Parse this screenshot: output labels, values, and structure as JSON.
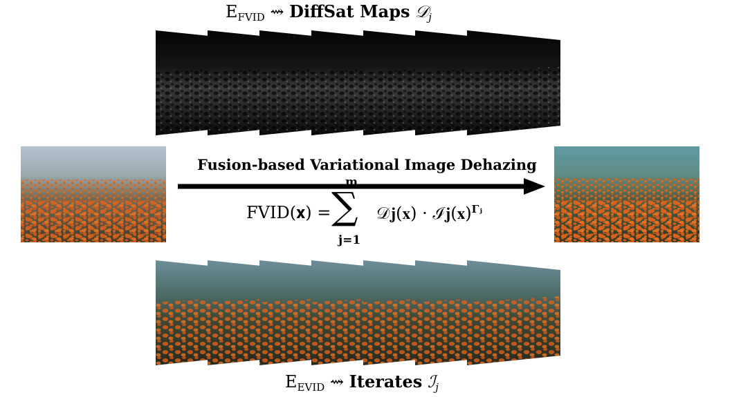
{
  "top_label": {
    "prefix": "E",
    "subscript": "FVID",
    "arrow": "⇝",
    "bold": "DiffSat Maps",
    "symbol": "𝒟",
    "symbol_sub": "j"
  },
  "bottom_label": {
    "prefix": "E",
    "subscript": "EVID",
    "arrow": "⇝",
    "bold": "Iterates",
    "symbol": "ℐ",
    "symbol_sub": "j"
  },
  "process_title": "Fusion-based Variational Image Dehazing",
  "formula": {
    "lhs": "FVID(𝐱) =",
    "sum_symbol": "∑",
    "upper": "m",
    "lower": "j=1",
    "rhs": "𝒟𝐣(𝐱) · ℐ𝐣(𝐱)",
    "exponent": "Γⱼ"
  },
  "colors": {
    "haze_sky": "#a9bccb",
    "pumpkin": "#e0621c",
    "dehazed_sky": "#6fa3a6",
    "map_dark": "#0a0a0a",
    "arrow": "#000000"
  },
  "stack_count": 7
}
